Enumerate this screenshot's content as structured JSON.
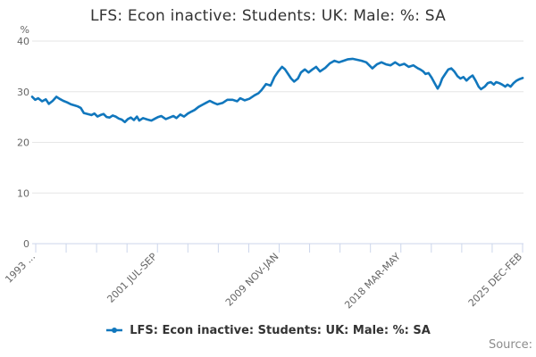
{
  "title": "LFS: Econ inactive: Students: UK: Male: %: SA",
  "y_axis_unit": "%",
  "legend": {
    "label": "LFS: Econ inactive: Students: UK: Male: %: SA",
    "marker": "line-dot-icon"
  },
  "source_label": "Source:",
  "colors": {
    "series": "#1177bd",
    "grid": "#e6e6e6",
    "axis": "#ccd6eb",
    "title_text": "#333333",
    "axis_text": "#666666",
    "source_text": "#8c8c8c"
  },
  "chart_data": {
    "type": "line",
    "title": "LFS: Econ inactive: Students: UK: Male: %: SA",
    "xlabel": "",
    "ylabel": "%",
    "ylim": [
      0,
      40
    ],
    "yticks": [
      0,
      10,
      20,
      30,
      40
    ],
    "xlim": [
      1992.8,
      2025.15
    ],
    "minor_tick_count": 17,
    "xtick_labels": [
      {
        "label": "1993 ...",
        "tick": 0
      },
      {
        "label": "2001 JUL-SEP",
        "tick": 4
      },
      {
        "label": "2009 NOV-JAN",
        "tick": 8
      },
      {
        "label": "2018 MAR-MAY",
        "tick": 12
      },
      {
        "label": "2025 DEC-FEB",
        "tick": 16
      }
    ],
    "grid": "horizontal",
    "legend_position": "bottom",
    "series": [
      {
        "name": "LFS: Econ inactive: Students: UK: Male: %: SA",
        "color": "#1177bd",
        "points": [
          [
            1992.8,
            29.0
          ],
          [
            1993.0,
            28.4
          ],
          [
            1993.2,
            28.7
          ],
          [
            1993.45,
            28.1
          ],
          [
            1993.7,
            28.5
          ],
          [
            1993.9,
            27.6
          ],
          [
            1994.15,
            28.2
          ],
          [
            1994.4,
            29.0
          ],
          [
            1994.6,
            28.6
          ],
          [
            1994.85,
            28.2
          ],
          [
            1995.1,
            27.9
          ],
          [
            1995.35,
            27.5
          ],
          [
            1995.6,
            27.3
          ],
          [
            1995.8,
            27.1
          ],
          [
            1996.0,
            26.8
          ],
          [
            1996.2,
            25.8
          ],
          [
            1996.45,
            25.6
          ],
          [
            1996.7,
            25.4
          ],
          [
            1996.9,
            25.7
          ],
          [
            1997.1,
            25.1
          ],
          [
            1997.3,
            25.4
          ],
          [
            1997.5,
            25.6
          ],
          [
            1997.7,
            25.0
          ],
          [
            1997.9,
            24.9
          ],
          [
            1998.1,
            25.3
          ],
          [
            1998.3,
            25.1
          ],
          [
            1998.5,
            24.7
          ],
          [
            1998.7,
            24.5
          ],
          [
            1998.9,
            24.0
          ],
          [
            1999.1,
            24.6
          ],
          [
            1999.3,
            24.9
          ],
          [
            1999.5,
            24.4
          ],
          [
            1999.7,
            25.1
          ],
          [
            1999.85,
            24.3
          ],
          [
            2000.1,
            24.8
          ],
          [
            2000.4,
            24.5
          ],
          [
            2000.65,
            24.3
          ],
          [
            2000.9,
            24.7
          ],
          [
            2001.1,
            25.0
          ],
          [
            2001.3,
            25.2
          ],
          [
            2001.6,
            24.6
          ],
          [
            2001.85,
            24.9
          ],
          [
            2002.1,
            25.2
          ],
          [
            2002.3,
            24.8
          ],
          [
            2002.55,
            25.5
          ],
          [
            2002.8,
            25.1
          ],
          [
            2003.05,
            25.7
          ],
          [
            2003.3,
            26.1
          ],
          [
            2003.5,
            26.4
          ],
          [
            2003.75,
            27.0
          ],
          [
            2004.0,
            27.4
          ],
          [
            2004.25,
            27.8
          ],
          [
            2004.5,
            28.2
          ],
          [
            2004.75,
            27.8
          ],
          [
            2005.0,
            27.5
          ],
          [
            2005.35,
            27.8
          ],
          [
            2005.65,
            28.4
          ],
          [
            2006.0,
            28.4
          ],
          [
            2006.3,
            28.1
          ],
          [
            2006.5,
            28.7
          ],
          [
            2006.8,
            28.3
          ],
          [
            2007.1,
            28.6
          ],
          [
            2007.45,
            29.3
          ],
          [
            2007.7,
            29.7
          ],
          [
            2007.9,
            30.3
          ],
          [
            2008.2,
            31.5
          ],
          [
            2008.5,
            31.2
          ],
          [
            2008.75,
            32.9
          ],
          [
            2009.0,
            34.0
          ],
          [
            2009.25,
            34.9
          ],
          [
            2009.45,
            34.4
          ],
          [
            2009.65,
            33.5
          ],
          [
            2009.85,
            32.6
          ],
          [
            2010.05,
            32.0
          ],
          [
            2010.3,
            32.6
          ],
          [
            2010.5,
            33.8
          ],
          [
            2010.75,
            34.4
          ],
          [
            2011.0,
            33.8
          ],
          [
            2011.25,
            34.4
          ],
          [
            2011.5,
            34.9
          ],
          [
            2011.75,
            34.0
          ],
          [
            2012.1,
            34.7
          ],
          [
            2012.4,
            35.6
          ],
          [
            2012.7,
            36.1
          ],
          [
            2013.0,
            35.8
          ],
          [
            2013.3,
            36.1
          ],
          [
            2013.6,
            36.4
          ],
          [
            2013.9,
            36.5
          ],
          [
            2014.2,
            36.3
          ],
          [
            2014.5,
            36.1
          ],
          [
            2014.8,
            35.8
          ],
          [
            2015.2,
            34.6
          ],
          [
            2015.5,
            35.4
          ],
          [
            2015.8,
            35.8
          ],
          [
            2016.1,
            35.4
          ],
          [
            2016.4,
            35.2
          ],
          [
            2016.7,
            35.8
          ],
          [
            2017.0,
            35.2
          ],
          [
            2017.3,
            35.5
          ],
          [
            2017.6,
            34.9
          ],
          [
            2017.9,
            35.2
          ],
          [
            2018.2,
            34.6
          ],
          [
            2018.35,
            34.4
          ],
          [
            2018.55,
            34.0
          ],
          [
            2018.7,
            33.5
          ],
          [
            2018.9,
            33.7
          ],
          [
            2019.1,
            32.8
          ],
          [
            2019.3,
            31.7
          ],
          [
            2019.5,
            30.6
          ],
          [
            2019.65,
            31.4
          ],
          [
            2019.8,
            32.6
          ],
          [
            2020.0,
            33.5
          ],
          [
            2020.2,
            34.4
          ],
          [
            2020.4,
            34.6
          ],
          [
            2020.6,
            34.0
          ],
          [
            2020.8,
            33.1
          ],
          [
            2021.0,
            32.6
          ],
          [
            2021.2,
            32.9
          ],
          [
            2021.4,
            32.2
          ],
          [
            2021.6,
            32.8
          ],
          [
            2021.8,
            33.2
          ],
          [
            2022.0,
            32.2
          ],
          [
            2022.2,
            31.0
          ],
          [
            2022.35,
            30.5
          ],
          [
            2022.6,
            31.0
          ],
          [
            2022.8,
            31.7
          ],
          [
            2023.0,
            31.9
          ],
          [
            2023.2,
            31.4
          ],
          [
            2023.35,
            31.9
          ],
          [
            2023.55,
            31.7
          ],
          [
            2023.75,
            31.4
          ],
          [
            2023.95,
            31.0
          ],
          [
            2024.1,
            31.4
          ],
          [
            2024.3,
            31.0
          ],
          [
            2024.5,
            31.7
          ],
          [
            2024.7,
            32.2
          ],
          [
            2024.9,
            32.5
          ],
          [
            2025.1,
            32.7
          ]
        ]
      }
    ]
  }
}
